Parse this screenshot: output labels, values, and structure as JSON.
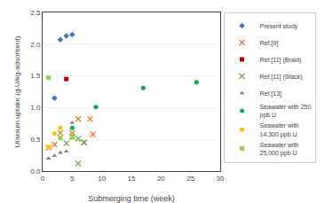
{
  "chart_data": {
    "type": "scatter",
    "xlabel": "Submerging time (week)",
    "ylabel": "Uranium uptake (g-U/kg-adsorbent)",
    "xlim": [
      0,
      30
    ],
    "ylim": [
      0,
      2.5
    ],
    "xticks": [
      0,
      5,
      10,
      15,
      20,
      25,
      30
    ],
    "yticks": [
      {
        "value": 0,
        "label": "0.0"
      },
      0.5,
      {
        "value": 1,
        "label": "1.0"
      },
      1.5,
      {
        "value": 2,
        "label": "2.0"
      },
      2.5
    ],
    "grid": "y",
    "legend": "outside right",
    "series": [
      {
        "name": "Present study",
        "color": "#4472C4",
        "marker": "diamond",
        "x": [
          2,
          3,
          4,
          5
        ],
        "values": [
          1.15,
          2.07,
          2.13,
          2.15
        ]
      },
      {
        "name": "Ref.[9]",
        "color": "#ED7D31",
        "marker": "x",
        "x": [
          1,
          2,
          3,
          5,
          6,
          8,
          8.5
        ],
        "values": [
          0.37,
          0.42,
          0.6,
          0.6,
          0.82,
          0.82,
          0.58
        ]
      },
      {
        "name": "Ref.[11] (Braid)",
        "color": "#C00000",
        "marker": "square",
        "x": [
          4
        ],
        "values": [
          1.45
        ]
      },
      {
        "name": "Ref.[11] (Stack)",
        "color": "#70AD47",
        "marker": "x",
        "x": [
          4,
          5,
          6,
          6,
          7,
          7
        ],
        "values": [
          0.44,
          0.55,
          0.51,
          0.12,
          0.45,
          0.45
        ]
      },
      {
        "name": "Ref.[13]",
        "color": "#808080",
        "marker": "triangle",
        "x": [
          1,
          2,
          3,
          4,
          5
        ],
        "values": [
          0.2,
          0.24,
          0.29,
          0.31,
          0.76
        ]
      },
      {
        "name": "Seawater with 250\nppb U",
        "color": "#00B050",
        "marker": "circle",
        "x": [
          5,
          9,
          17,
          26
        ],
        "values": [
          0.68,
          1.01,
          1.31,
          1.4
        ]
      },
      {
        "name": "Seawater with\n14,300 ppb U",
        "color": "#FFC000",
        "marker": "circle",
        "x": [
          1,
          2,
          3
        ],
        "values": [
          0.38,
          0.59,
          0.68
        ]
      },
      {
        "name": "Seawater with\n25,000 ppb U",
        "color": "#92D050",
        "marker": "square",
        "x": [
          1,
          3,
          5
        ],
        "values": [
          1.47,
          0.52,
          0.53
        ]
      }
    ]
  }
}
